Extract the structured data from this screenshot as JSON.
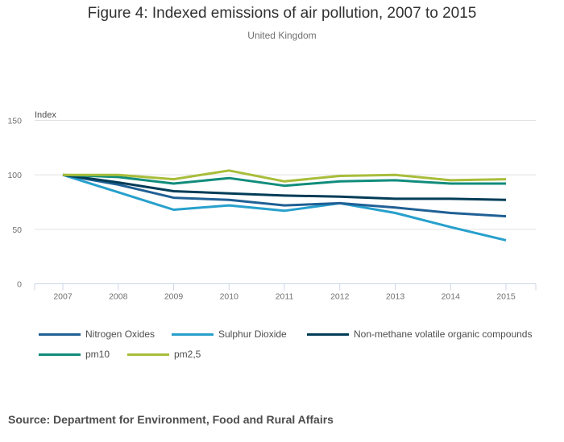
{
  "chart_data": {
    "type": "line",
    "title": "Figure 4: Indexed emissions of air pollution, 2007 to 2015",
    "subtitle": "United Kingdom",
    "xlabel": "",
    "ylabel": "Index",
    "x": [
      "2007",
      "2008",
      "2009",
      "2010",
      "2011",
      "2012",
      "2013",
      "2014",
      "2015"
    ],
    "ylim": [
      0,
      150
    ],
    "yticks": [
      0,
      50,
      100,
      150
    ],
    "grid": true,
    "legend_position": "bottom",
    "series": [
      {
        "name": "Nitrogen Oxides",
        "color": "#206095",
        "values": [
          100,
          91,
          79,
          77,
          72,
          74,
          70,
          65,
          62
        ]
      },
      {
        "name": "Sulphur Dioxide",
        "color": "#27a0cc",
        "values": [
          100,
          84,
          68,
          72,
          67,
          74,
          65,
          52,
          40
        ]
      },
      {
        "name": "Non-methane volatile organic compounds",
        "color": "#003c57",
        "values": [
          100,
          93,
          85,
          83,
          81,
          80,
          78,
          78,
          77
        ]
      },
      {
        "name": "pm10",
        "color": "#118c7b",
        "values": [
          100,
          98,
          92,
          97,
          90,
          94,
          95,
          92,
          92
        ]
      },
      {
        "name": "pm2,5",
        "color": "#a8bd3a",
        "values": [
          100,
          100,
          96,
          104,
          94,
          99,
          100,
          95,
          96
        ]
      }
    ]
  },
  "source": "Source: Department for Environment, Food and Rural Affairs"
}
